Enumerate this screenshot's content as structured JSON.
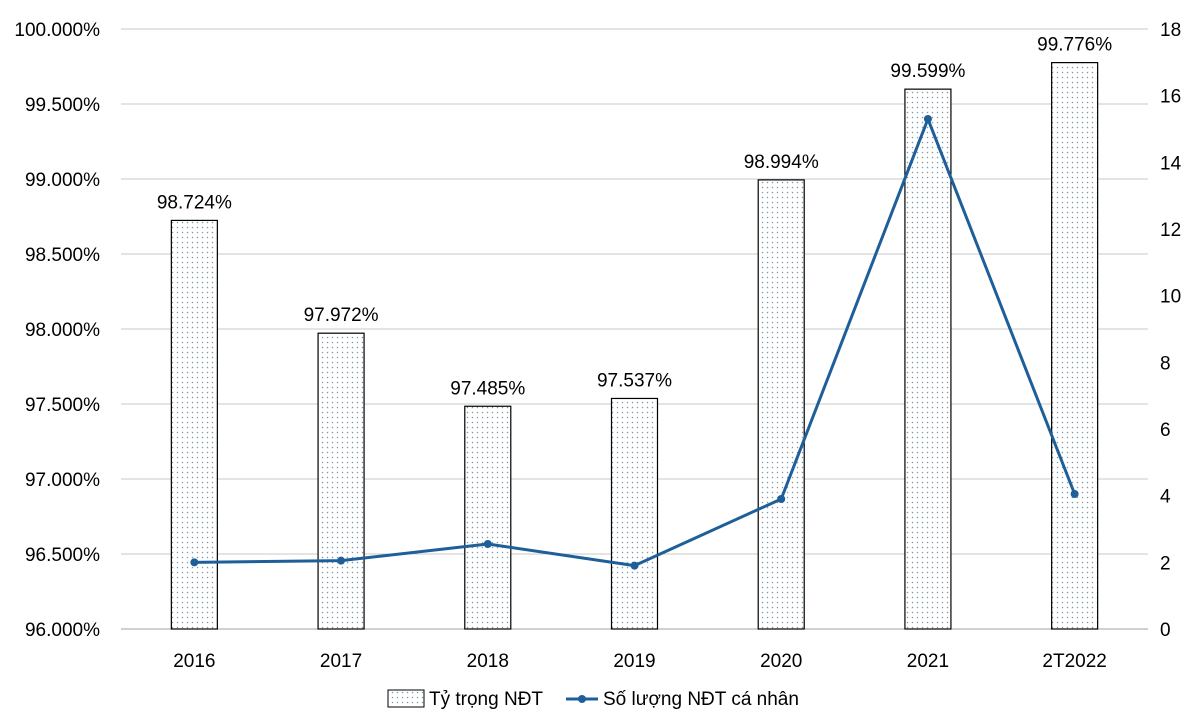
{
  "chart_data": {
    "type": "bar",
    "categories": [
      "2016",
      "2017",
      "2018",
      "2019",
      "2020",
      "2021",
      "2T2022"
    ],
    "series": [
      {
        "name": "Tỷ trọng NĐT",
        "type": "bar",
        "axis": "left",
        "values": [
          98.724,
          97.972,
          97.485,
          97.537,
          98.994,
          99.599,
          99.776
        ],
        "labels": [
          "98.724%",
          "97.972%",
          "97.485%",
          "97.537%",
          "98.994%",
          "99.599%",
          "99.776%"
        ]
      },
      {
        "name": "Số lượng NĐT cá nhân",
        "type": "line",
        "axis": "right",
        "values": [
          2.0,
          2.05,
          2.55,
          1.9,
          3.9,
          15.3,
          4.05
        ]
      }
    ],
    "y_left": {
      "min": 96.0,
      "max": 100.0,
      "ticks": [
        96.0,
        96.5,
        97.0,
        97.5,
        98.0,
        98.5,
        99.0,
        99.5,
        100.0
      ],
      "tick_labels": [
        "96.000%",
        "96.500%",
        "97.000%",
        "97.500%",
        "98.000%",
        "98.500%",
        "99.000%",
        "99.500%",
        "100.000%"
      ]
    },
    "y_right": {
      "min": 0,
      "max": 18,
      "ticks": [
        0,
        2,
        4,
        6,
        8,
        10,
        12,
        14,
        16,
        18
      ],
      "tick_labels": [
        "0",
        "2",
        "4",
        "6",
        "8",
        "10",
        "12",
        "14",
        "16",
        "18"
      ]
    },
    "grid": true,
    "legend": "bottom",
    "colors": {
      "line": "#1f5f99",
      "bar_dots": "#7a9aa8",
      "bar_border": "#000000",
      "grid": "#c8c8c8"
    }
  }
}
